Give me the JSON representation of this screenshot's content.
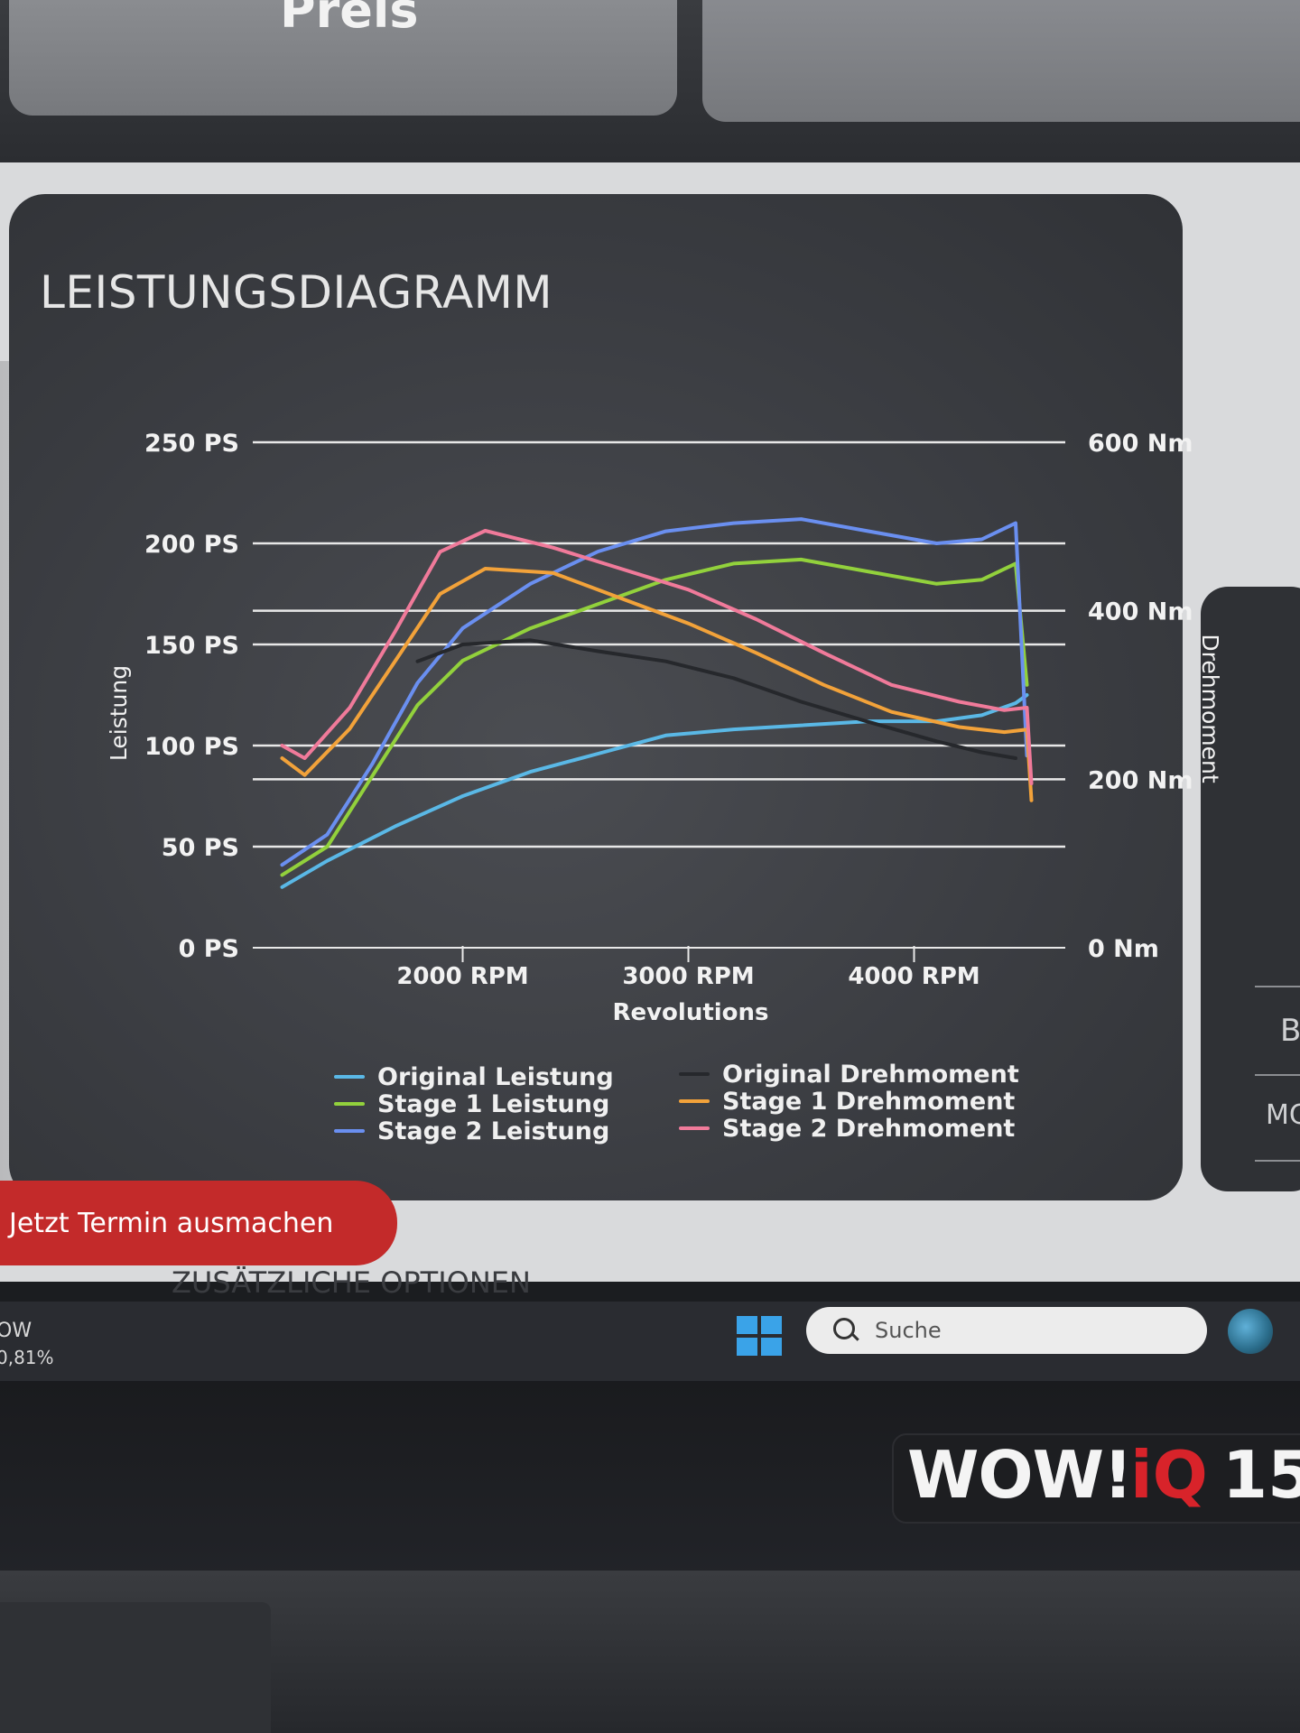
{
  "header": {
    "price_label": "Preis"
  },
  "panel": {
    "title": "LEISTUNGSDIAGRAMM"
  },
  "chart_data": {
    "type": "line",
    "title": "",
    "xlabel": "Revolutions",
    "ylabel": "Leistung",
    "y2label": "Drehmoment",
    "x_ticks": [
      "2000 RPM",
      "3000 RPM",
      "4000 RPM"
    ],
    "y_ticks": [
      "0 PS",
      "50 PS",
      "100 PS",
      "150 PS",
      "200 PS",
      "250 PS"
    ],
    "y2_ticks": [
      "0 Nm",
      "200 Nm",
      "400 Nm",
      "600 Nm"
    ],
    "xlim": [
      1150,
      4550
    ],
    "ylim": [
      0,
      250
    ],
    "y2lim": [
      0,
      600
    ],
    "grid": true,
    "legend_placement": "bottom",
    "series": [
      {
        "name": "Original Leistung",
        "axis": "left",
        "color": "#5ab8e6",
        "x": [
          1200,
          1400,
          1700,
          2000,
          2300,
          2600,
          2900,
          3200,
          3500,
          3800,
          4100,
          4300,
          4450,
          4500
        ],
        "y": [
          30,
          43,
          60,
          75,
          87,
          96,
          105,
          108,
          110,
          112,
          112,
          115,
          121,
          125
        ]
      },
      {
        "name": "Stage 1 Leistung",
        "axis": "left",
        "color": "#92d13c",
        "x": [
          1200,
          1400,
          1600,
          1800,
          2000,
          2300,
          2600,
          2900,
          3200,
          3500,
          3800,
          4100,
          4300,
          4450,
          4500
        ],
        "y": [
          36,
          50,
          85,
          120,
          142,
          158,
          170,
          182,
          190,
          192,
          186,
          180,
          182,
          190,
          130
        ]
      },
      {
        "name": "Stage 2 Leistung",
        "axis": "left",
        "color": "#6a8ff0",
        "x": [
          1200,
          1400,
          1600,
          1800,
          2000,
          2300,
          2600,
          2900,
          3200,
          3500,
          3800,
          4100,
          4300,
          4450,
          4500
        ],
        "y": [
          41,
          56,
          91,
          131,
          158,
          180,
          196,
          206,
          210,
          212,
          206,
          200,
          202,
          210,
          95
        ]
      },
      {
        "name": "Original Drehmoment",
        "axis": "right",
        "color": "#26282c",
        "x": [
          1800,
          2000,
          2300,
          2600,
          2900,
          3200,
          3500,
          3800,
          4100,
          4300,
          4450
        ],
        "y": [
          340,
          360,
          365,
          352,
          340,
          320,
          292,
          268,
          245,
          232,
          225
        ]
      },
      {
        "name": "Stage 1 Drehmoment",
        "axis": "right",
        "color": "#f2a23a",
        "x": [
          1200,
          1300,
          1500,
          1700,
          1900,
          2100,
          2400,
          2700,
          3000,
          3300,
          3600,
          3900,
          4200,
          4400,
          4500,
          4520
        ],
        "y": [
          225,
          205,
          260,
          340,
          420,
          450,
          445,
          415,
          385,
          350,
          312,
          280,
          262,
          256,
          259,
          175
        ]
      },
      {
        "name": "Stage 2 Drehmoment",
        "axis": "right",
        "color": "#f07a9a",
        "x": [
          1200,
          1300,
          1500,
          1700,
          1900,
          2100,
          2400,
          2700,
          3000,
          3300,
          3600,
          3900,
          4200,
          4400,
          4500,
          4520
        ],
        "y": [
          240,
          225,
          285,
          375,
          470,
          495,
          475,
          450,
          425,
          390,
          350,
          312,
          292,
          282,
          285,
          195
        ]
      }
    ]
  },
  "cta": {
    "label": "Jetzt Termin ausmachen"
  },
  "options": {
    "title": "ZUSÄTZLICHE OPTIONEN"
  },
  "taskbar": {
    "stock_name": "OW",
    "stock_change": "0,81%",
    "search_placeholder": "Suche"
  },
  "brand": {
    "wow": "WOW!",
    "iq": "iQ",
    "num": "15"
  },
  "right_panel": {
    "letter1": "B",
    "letter2": "MC"
  }
}
